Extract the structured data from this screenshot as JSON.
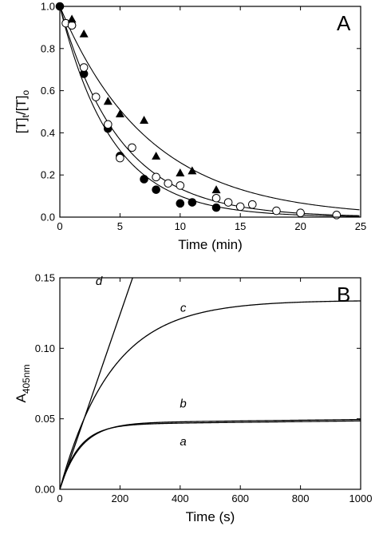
{
  "chart_data": [
    {
      "type": "scatter",
      "panel_label": "A",
      "xlabel": "Time (min)",
      "ylabel_main": "[T]",
      "ylabel_sub1": "t",
      "ylabel_mid": "/[T]",
      "ylabel_sub2": "o",
      "xlim": [
        0,
        25
      ],
      "ylim": [
        0,
        1.0
      ],
      "x_ticks": [
        0,
        5,
        10,
        15,
        20,
        25
      ],
      "x_tick_labels": [
        "0",
        "5",
        "10",
        "15",
        "20",
        "25"
      ],
      "y_ticks": [
        0,
        0.2,
        0.4,
        0.6,
        0.8,
        1.0
      ],
      "y_tick_labels": [
        "0.0",
        "0.2",
        "0.4",
        "0.6",
        "0.8",
        "1.0"
      ],
      "series": [
        {
          "marker": "filled-circle",
          "points": [
            [
              0,
              1.0
            ],
            [
              1,
              0.91
            ],
            [
              2,
              0.68
            ],
            [
              4,
              0.42
            ],
            [
              5,
              0.29
            ],
            [
              7,
              0.18
            ],
            [
              8,
              0.13
            ],
            [
              10,
              0.065
            ],
            [
              11,
              0.07
            ],
            [
              13,
              0.045
            ]
          ]
        },
        {
          "marker": "open-circle",
          "points": [
            [
              0.5,
              0.92
            ],
            [
              1,
              0.91
            ],
            [
              2,
              0.71
            ],
            [
              3,
              0.57
            ],
            [
              4,
              0.44
            ],
            [
              5,
              0.28
            ],
            [
              6,
              0.33
            ],
            [
              8,
              0.19
            ],
            [
              9,
              0.16
            ],
            [
              10,
              0.15
            ],
            [
              13,
              0.09
            ],
            [
              14,
              0.07
            ],
            [
              15,
              0.05
            ],
            [
              16,
              0.06
            ],
            [
              18,
              0.03
            ],
            [
              20,
              0.02
            ],
            [
              23,
              0.01
            ]
          ]
        },
        {
          "marker": "filled-triangle",
          "points": [
            [
              1,
              0.94
            ],
            [
              2,
              0.87
            ],
            [
              4,
              0.55
            ],
            [
              5,
              0.49
            ],
            [
              7,
              0.46
            ],
            [
              8,
              0.29
            ],
            [
              10,
              0.21
            ],
            [
              11,
              0.22
            ],
            [
              13,
              0.13
            ]
          ]
        }
      ],
      "fits": [
        {
          "model": "exp",
          "k": 0.23
        },
        {
          "model": "exp",
          "k": 0.2
        },
        {
          "model": "exp",
          "k": 0.135
        }
      ]
    },
    {
      "type": "line",
      "panel_label": "B",
      "xlabel": "Time (s)",
      "ylabel_main": "A",
      "ylabel_sub1": "405nm",
      "xlim": [
        0,
        1000
      ],
      "ylim": [
        0,
        0.15
      ],
      "x_ticks": [
        0,
        200,
        400,
        600,
        800,
        1000
      ],
      "x_tick_labels": [
        "0",
        "200",
        "400",
        "600",
        "800",
        "1000"
      ],
      "y_ticks": [
        0,
        0.05,
        0.1,
        0.15
      ],
      "y_tick_labels": [
        "0.00",
        "0.05",
        "0.10",
        "0.15"
      ],
      "series": [
        {
          "name": "a",
          "model": "rise",
          "vmax": 0.046,
          "k": 0.016,
          "slope": 2.5e-06
        },
        {
          "name": "b",
          "model": "rise",
          "vmax": 0.047,
          "k": 0.0145,
          "slope": 2.5e-06
        },
        {
          "name": "c",
          "model": "rise",
          "vmax": 0.134,
          "k": 0.0058,
          "slope": 0
        },
        {
          "name": "d",
          "model": "linear",
          "slope": 0.00062
        }
      ],
      "labels": [
        {
          "text": "a",
          "x": 410,
          "y": 0.031
        },
        {
          "text": "b",
          "x": 410,
          "y": 0.058
        },
        {
          "text": "c",
          "x": 410,
          "y": 0.126
        },
        {
          "text": "d",
          "x": 130,
          "y": 0.145
        }
      ]
    }
  ]
}
